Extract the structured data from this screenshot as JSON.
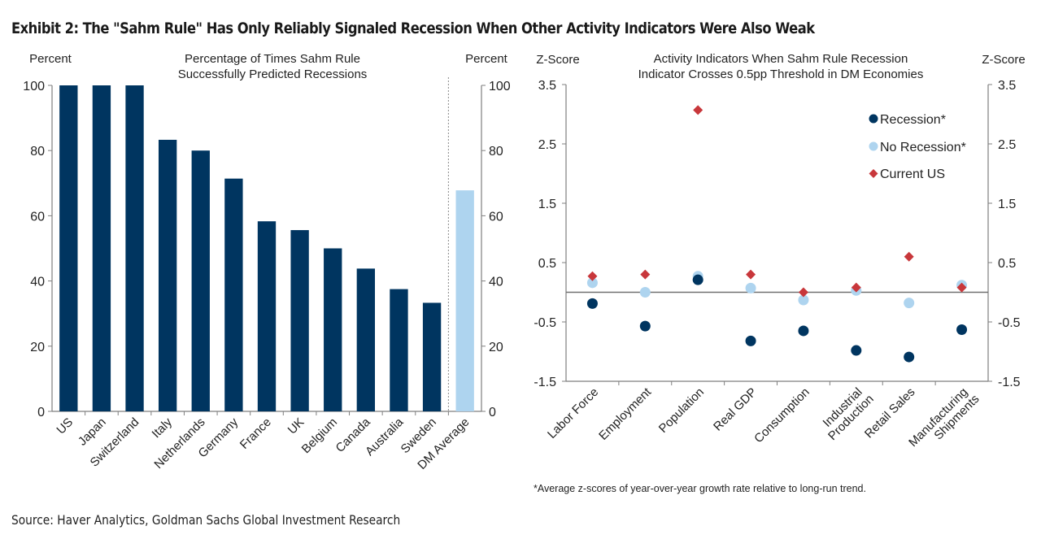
{
  "title": "Exhibit 2: The \"Sahm Rule\" Has Only Reliably Signaled Recession When Other Activity Indicators Were Also Weak",
  "source": "Source: Haver Analytics, Goldman Sachs Global Investment Research",
  "colors": {
    "recession": "#003560",
    "no_recession": "#aed4ef",
    "current_us": "#c8373b",
    "dm_average": "#aed4ef",
    "bar": "#003560"
  },
  "chart_data": [
    {
      "type": "bar",
      "title": "Percentage of Times Sahm Rule Successfully Predicted Recessions",
      "title_lines": [
        "Percentage of Times Sahm Rule",
        "Successfully Predicted Recessions"
      ],
      "ylabel_left": "Percent",
      "ylabel_right": "Percent",
      "ylim": [
        0,
        100
      ],
      "yticks": [
        0,
        20,
        40,
        60,
        80,
        100
      ],
      "categories": [
        "US",
        "Japan",
        "Switzerland",
        "Italy",
        "Netherlands",
        "Germany",
        "France",
        "UK",
        "Belgium",
        "Canada",
        "Australia",
        "Sweden",
        "DM Average"
      ],
      "values": [
        100,
        100,
        100,
        83.3,
        80,
        71.4,
        58.3,
        55.6,
        50,
        43.8,
        37.5,
        33.3,
        67.8
      ],
      "highlight": "DM Average",
      "separator_before": "DM Average"
    },
    {
      "type": "scatter",
      "title": "Activity Indicators When Sahm Rule Recession Indicator Crosses 0.5pp Threshold in DM Economies",
      "title_lines": [
        "Activity Indicators When Sahm Rule Recession",
        "Indicator Crosses 0.5pp Threshold  in DM Economies"
      ],
      "ylabel_left": "Z-Score",
      "ylabel_right": "Z-Score",
      "ylim": [
        -1.5,
        3.5
      ],
      "yticks": [
        -1.5,
        -0.5,
        0.5,
        1.5,
        2.5,
        3.5
      ],
      "categories": [
        [
          "Labor Force"
        ],
        [
          "Employment"
        ],
        [
          "Population"
        ],
        [
          "Real GDP"
        ],
        [
          "Consumption"
        ],
        [
          "Industrial",
          "Production"
        ],
        [
          "Retail Sales"
        ],
        [
          "Manufacturing",
          "Shipments"
        ]
      ],
      "series": [
        {
          "name": "Recession*",
          "marker": "circle",
          "values": [
            -0.19,
            -0.57,
            0.21,
            -0.82,
            -0.65,
            -0.98,
            -1.09,
            -0.63
          ]
        },
        {
          "name": "No Recession*",
          "marker": "circle",
          "values": [
            0.16,
            0.0,
            0.27,
            0.07,
            -0.13,
            0.03,
            -0.18,
            0.12
          ]
        },
        {
          "name": "Current US",
          "marker": "diamond",
          "values": [
            0.27,
            0.3,
            3.07,
            0.3,
            0.0,
            0.08,
            0.6,
            0.08
          ]
        }
      ],
      "legend": "top-right",
      "footnote": "*Average z-scores of year-over-year growth rate relative to long-run trend."
    }
  ]
}
